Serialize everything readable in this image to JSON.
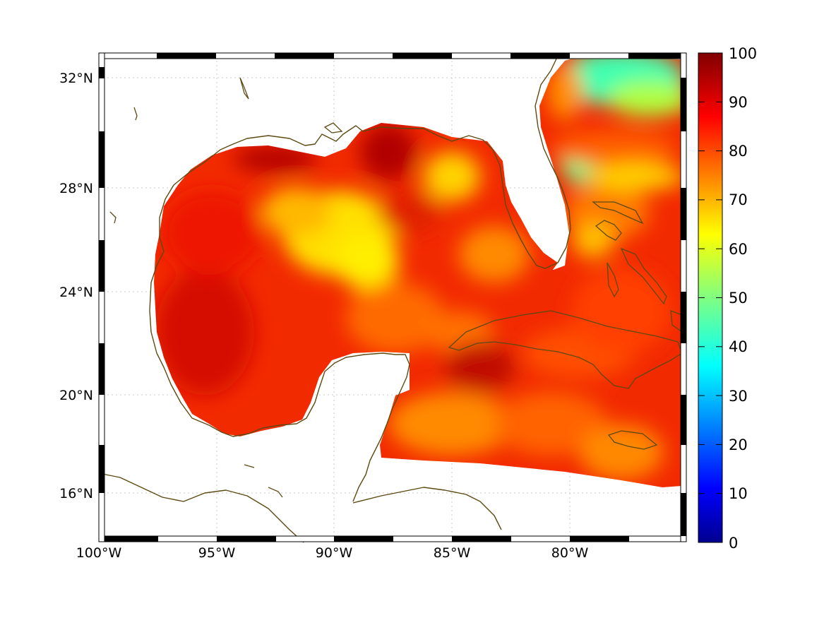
{
  "map": {
    "lon_labels": [
      "100°W",
      "95°W",
      "90°W",
      "85°W",
      "80°W"
    ],
    "lat_labels": [
      "32°N",
      "28°N",
      "24°N",
      "20°N",
      "16°N"
    ],
    "lon_values": [
      -100,
      -95,
      -90,
      -85,
      -80
    ],
    "lat_values": [
      32,
      28,
      24,
      20,
      16
    ],
    "extent": {
      "lon_min": -100,
      "lon_max": -75,
      "lat_min": 14.3,
      "lat_max": 33
    },
    "colorbar": {
      "colormap": "jet",
      "min": 0,
      "max": 100,
      "ticks": [
        "100",
        "90",
        "80",
        "70",
        "60",
        "50",
        "40",
        "30",
        "20",
        "10",
        "0"
      ]
    },
    "field_range_shown": [
      50,
      100
    ],
    "coastline_color": "#5c4a12",
    "grid": true
  }
}
